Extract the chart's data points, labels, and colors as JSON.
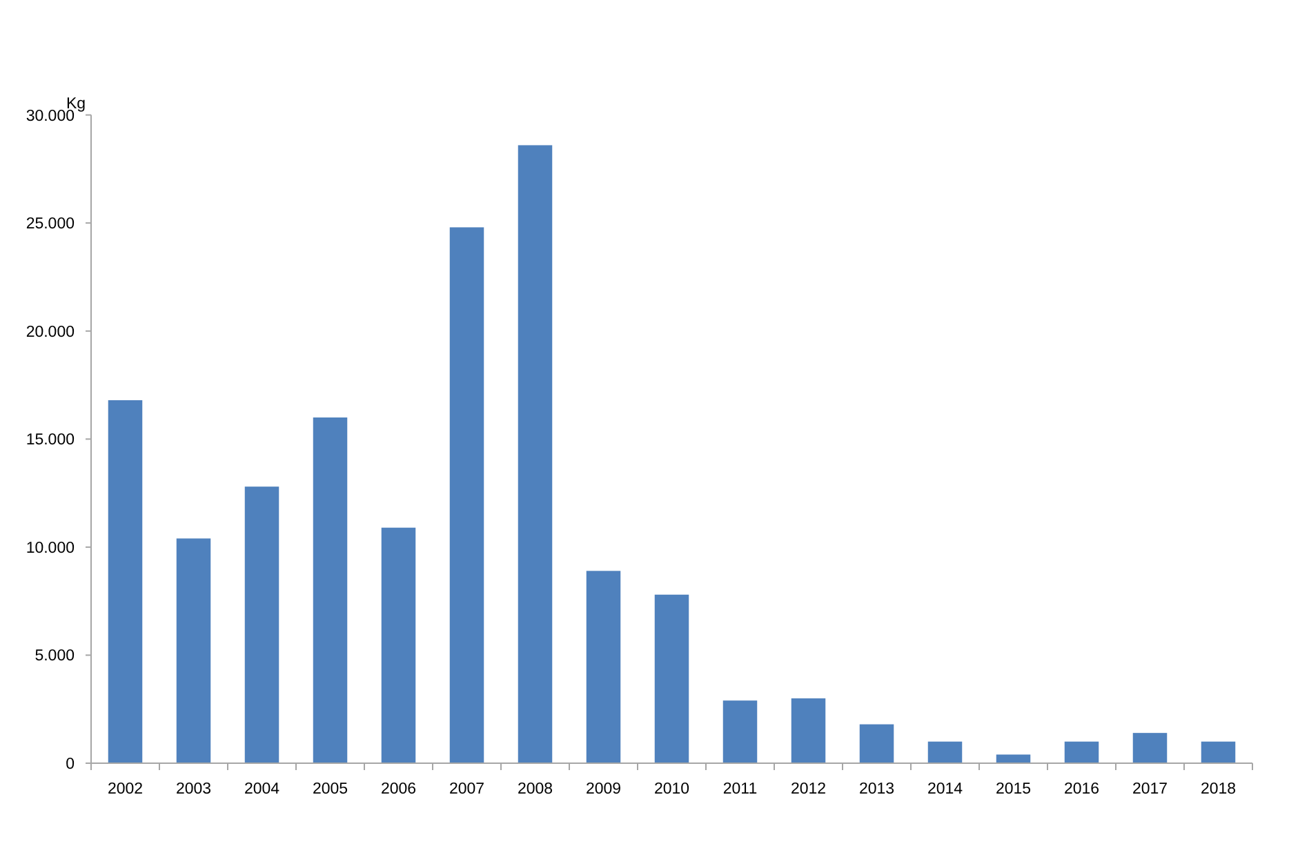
{
  "chart_data": {
    "type": "bar",
    "ylabel": "Kg",
    "categories": [
      "2002",
      "2003",
      "2004",
      "2005",
      "2006",
      "2007",
      "2008",
      "2009",
      "2010",
      "2011",
      "2012",
      "2013",
      "2014",
      "2015",
      "2016",
      "2017",
      "2018"
    ],
    "values": [
      16800,
      10400,
      12800,
      16000,
      10900,
      24800,
      28600,
      8900,
      7800,
      2900,
      3000,
      1800,
      1000,
      400,
      1000,
      1400,
      1000
    ],
    "color": "#4f81bd",
    "ylim": [
      0,
      30000
    ],
    "yticks": [
      0,
      {
        "value": 5000,
        "label": "5.000"
      },
      {
        "value": 10000,
        "label": "10.000"
      },
      {
        "value": 15000,
        "label": "15.000"
      },
      {
        "value": 20000,
        "label": "20.000"
      },
      {
        "value": 25000,
        "label": "25.000"
      },
      {
        "value": 30000,
        "label": "30.000"
      }
    ]
  }
}
